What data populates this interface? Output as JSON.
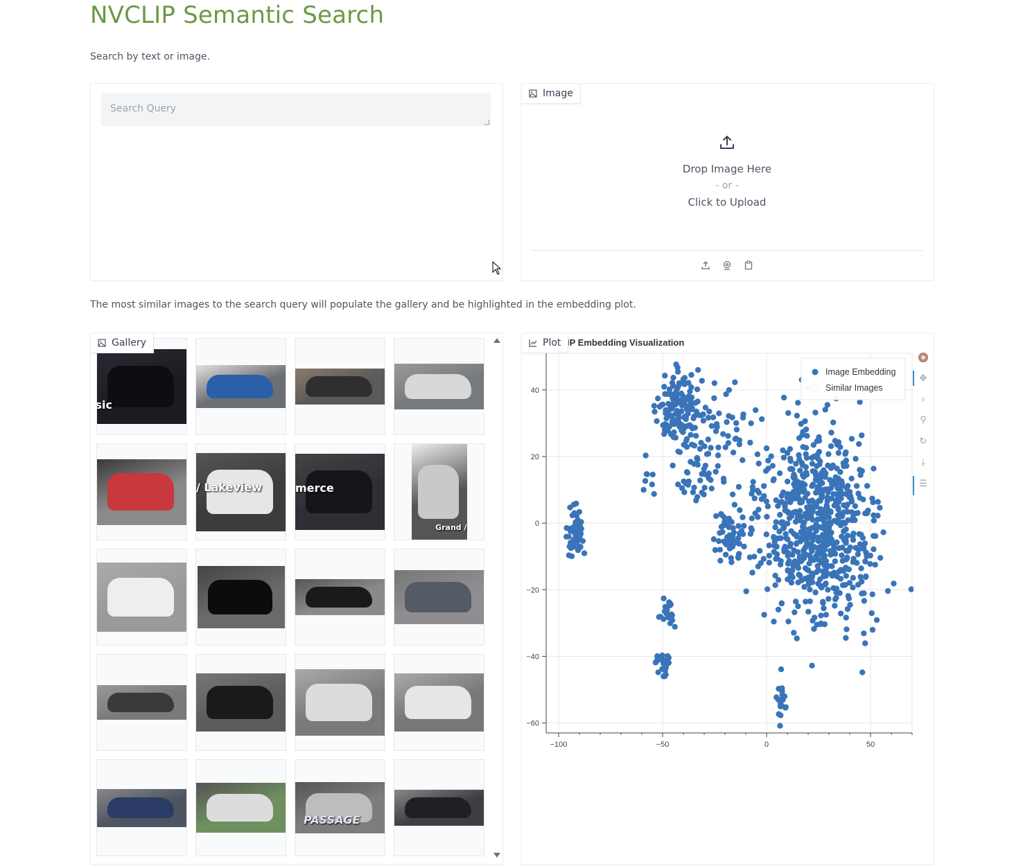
{
  "app": {
    "title": "NVCLIP Semantic Search",
    "subtitle": "Search by text or image.",
    "note": "The most similar images to the search query will populate the gallery and be highlighted in the embedding plot."
  },
  "search": {
    "placeholder": "Search Query",
    "value": ""
  },
  "image_input": {
    "tab_label": "Image",
    "drop_text": "Drop Image Here",
    "or_text": "- or -",
    "click_text": "Click to Upload",
    "sources": [
      "upload-icon",
      "webcam-icon",
      "clipboard-icon"
    ]
  },
  "gallery": {
    "tab_label": "Gallery",
    "items": [
      {
        "caption": "isic"
      },
      {
        "caption": ""
      },
      {
        "caption": ""
      },
      {
        "caption": ""
      },
      {
        "caption": ""
      },
      {
        "caption": "/ Lakeview"
      },
      {
        "caption": "merce"
      },
      {
        "caption": "Grand /"
      },
      {
        "caption": ""
      },
      {
        "caption": ""
      },
      {
        "caption": ""
      },
      {
        "caption": ""
      },
      {
        "caption": ""
      },
      {
        "caption": ""
      },
      {
        "caption": ""
      },
      {
        "caption": ""
      },
      {
        "caption": ""
      },
      {
        "caption": ""
      },
      {
        "caption": "PASSAGE"
      },
      {
        "caption": ""
      }
    ]
  },
  "plot": {
    "tab_label": "Plot",
    "title_visible": "IP Embedding Visualization",
    "tools": [
      "bokeh-logo-icon",
      "pan-icon",
      "box-zoom-icon",
      "wheel-zoom-icon",
      "reset-icon",
      "save-icon",
      "hover-icon"
    ]
  },
  "chart_data": {
    "type": "scatter",
    "title": "IP Embedding Visualization",
    "xlabel": "",
    "ylabel": "",
    "xlim": [
      -106,
      70
    ],
    "ylim": [
      -63,
      51
    ],
    "x_ticks": [
      -100,
      -50,
      0,
      50
    ],
    "y_ticks": [
      40,
      20,
      0,
      -20,
      -40,
      -60
    ],
    "grid": true,
    "legend_position": "top-right",
    "colors": {
      "embedding": "#3a74b8",
      "similar": "#ffffff"
    },
    "series": [
      {
        "name": "Image Embedding",
        "clusters": [
          {
            "cx": -92,
            "cy": -3,
            "sx": 3,
            "sy": 5,
            "n": 60
          },
          {
            "cx": -42,
            "cy": 34,
            "sx": 8,
            "sy": 7,
            "n": 150
          },
          {
            "cx": -48,
            "cy": -28,
            "sx": 3,
            "sy": 4,
            "n": 20
          },
          {
            "cx": -50,
            "cy": -42,
            "sx": 3,
            "sy": 3,
            "n": 25
          },
          {
            "cx": -57,
            "cy": 14,
            "sx": 3,
            "sy": 5,
            "n": 8
          },
          {
            "cx": 25,
            "cy": 0,
            "sx": 20,
            "sy": 20,
            "n": 700
          },
          {
            "cx": -17,
            "cy": -4,
            "sx": 6,
            "sy": 7,
            "n": 60
          },
          {
            "cx": -32,
            "cy": 14,
            "sx": 7,
            "sy": 8,
            "n": 45
          },
          {
            "cx": 7,
            "cy": -53,
            "sx": 2,
            "sy": 4,
            "n": 20
          },
          {
            "cx": -20,
            "cy": 30,
            "sx": 12,
            "sy": 10,
            "n": 40
          }
        ]
      },
      {
        "name": "Similar Images",
        "clusters": []
      }
    ]
  }
}
